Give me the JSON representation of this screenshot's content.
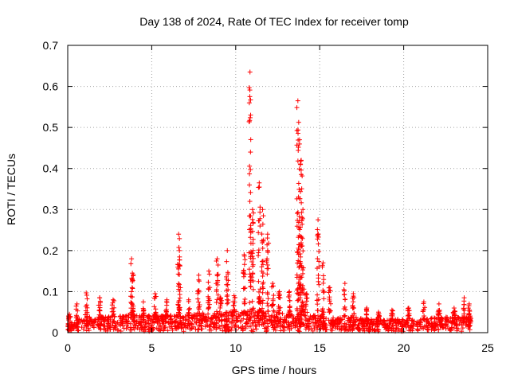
{
  "chart_data": {
    "type": "scatter",
    "title": "Day 138 of 2024, Rate Of TEC Index for receiver tomp",
    "xlabel": "GPS time / hours",
    "ylabel": "ROTI / TECUs",
    "xlim": [
      0,
      25
    ],
    "ylim": [
      0,
      0.7
    ],
    "xticks": [
      0,
      5,
      10,
      15,
      20,
      25
    ],
    "yticks": [
      0,
      0.1,
      0.2,
      0.3,
      0.4,
      0.5,
      0.6,
      0.7
    ],
    "grid": true,
    "marker": "+",
    "color": "#ff0000",
    "series": [
      {
        "values_described": "dense ROTI samples spanning 0 to 24 h",
        "baseline": [
          [
            0.0,
            0.02
          ],
          [
            1.0,
            0.035
          ],
          [
            2.0,
            0.035
          ],
          [
            3.0,
            0.04
          ],
          [
            4.0,
            0.04
          ],
          [
            5.0,
            0.04
          ],
          [
            6.0,
            0.04
          ],
          [
            7.0,
            0.04
          ],
          [
            8.0,
            0.045
          ],
          [
            9.0,
            0.045
          ],
          [
            10.0,
            0.05
          ],
          [
            11.0,
            0.05
          ],
          [
            12.0,
            0.05
          ],
          [
            13.0,
            0.045
          ],
          [
            14.0,
            0.04
          ],
          [
            15.0,
            0.04
          ],
          [
            16.0,
            0.035
          ],
          [
            17.0,
            0.035
          ],
          [
            18.0,
            0.03
          ],
          [
            19.0,
            0.03
          ],
          [
            20.0,
            0.03
          ],
          [
            21.0,
            0.03
          ],
          [
            22.0,
            0.035
          ],
          [
            23.0,
            0.035
          ],
          [
            24.0,
            0.035
          ]
        ],
        "peaks": [
          [
            0.1,
            0.045
          ],
          [
            0.55,
            0.07
          ],
          [
            1.1,
            0.097
          ],
          [
            1.9,
            0.085
          ],
          [
            2.7,
            0.08
          ],
          [
            3.8,
            0.18
          ],
          [
            3.85,
            0.145
          ],
          [
            4.5,
            0.075
          ],
          [
            5.2,
            0.095
          ],
          [
            5.9,
            0.08
          ],
          [
            6.6,
            0.24
          ],
          [
            6.65,
            0.2
          ],
          [
            7.2,
            0.08
          ],
          [
            7.8,
            0.14
          ],
          [
            8.4,
            0.15
          ],
          [
            8.9,
            0.18
          ],
          [
            9.1,
            0.085
          ],
          [
            9.5,
            0.2
          ],
          [
            9.9,
            0.09
          ],
          [
            10.5,
            0.19
          ],
          [
            10.85,
            0.635
          ],
          [
            11.0,
            0.3
          ],
          [
            11.4,
            0.365
          ],
          [
            11.6,
            0.3
          ],
          [
            11.9,
            0.24
          ],
          [
            12.2,
            0.12
          ],
          [
            12.6,
            0.1
          ],
          [
            13.2,
            0.1
          ],
          [
            13.7,
            0.565
          ],
          [
            13.8,
            0.47
          ],
          [
            13.9,
            0.42
          ],
          [
            14.0,
            0.3
          ],
          [
            14.2,
            0.095
          ],
          [
            14.9,
            0.275
          ],
          [
            15.2,
            0.17
          ],
          [
            15.6,
            0.11
          ],
          [
            16.5,
            0.12
          ],
          [
            17.0,
            0.095
          ],
          [
            17.8,
            0.06
          ],
          [
            18.5,
            0.05
          ],
          [
            19.3,
            0.055
          ],
          [
            20.3,
            0.06
          ],
          [
            21.2,
            0.075
          ],
          [
            22.1,
            0.07
          ],
          [
            23.0,
            0.06
          ],
          [
            23.6,
            0.085
          ],
          [
            23.9,
            0.07
          ]
        ]
      }
    ]
  }
}
